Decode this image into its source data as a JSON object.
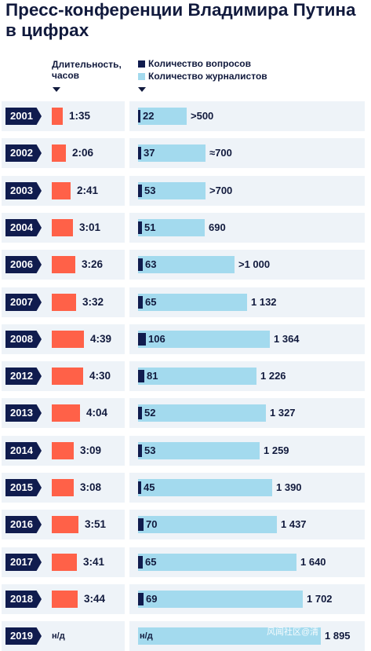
{
  "title": "Пресс-конференции Владимира Путина в цифрах",
  "legend": {
    "duration_label": "Длительность, часов",
    "questions_label": "Количество вопросов",
    "journalists_label": "Количество журналистов",
    "questions_color": "#101c4e",
    "journalists_color": "#a3daee",
    "duration_color": "#ff6148"
  },
  "chart_data": {
    "type": "bar",
    "categories": [
      "2001",
      "2002",
      "2003",
      "2004",
      "2006",
      "2007",
      "2008",
      "2012",
      "2013",
      "2014",
      "2015",
      "2016",
      "2017",
      "2018",
      "2019"
    ],
    "series": [
      {
        "name": "Длительность, часов",
        "values": [
          "1:35",
          "2:06",
          "2:41",
          "3:01",
          "3:26",
          "3:32",
          "4:39",
          "4:30",
          "4:04",
          "3:09",
          "3:08",
          "3:51",
          "3:41",
          "3:44",
          "н/д"
        ],
        "minutes": [
          95,
          126,
          161,
          181,
          206,
          212,
          279,
          270,
          244,
          189,
          188,
          231,
          221,
          224,
          null
        ]
      },
      {
        "name": "Количество вопросов",
        "values": [
          22,
          37,
          53,
          51,
          63,
          65,
          106,
          81,
          52,
          53,
          45,
          70,
          65,
          69,
          null
        ],
        "labels": [
          "22",
          "37",
          "53",
          "51",
          "63",
          "65",
          "106",
          "81",
          "52",
          "53",
          "45",
          "70",
          "65",
          "69",
          "н/д"
        ]
      },
      {
        "name": "Количество журналистов",
        "values": [
          500,
          700,
          700,
          690,
          1000,
          1132,
          1364,
          1226,
          1327,
          1259,
          1390,
          1437,
          1640,
          1702,
          1895
        ],
        "labels": [
          ">500",
          "≈700",
          ">700",
          "690",
          ">1 000",
          "1 132",
          "1 364",
          "1 226",
          "1 327",
          "1 259",
          "1 390",
          "1 437",
          "1 640",
          "1 702",
          "1 895"
        ]
      }
    ]
  },
  "watermark": "风闻社区@清"
}
